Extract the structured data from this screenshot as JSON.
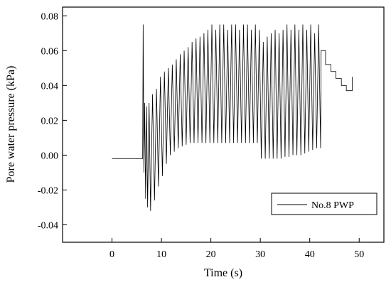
{
  "chart_data": {
    "type": "line",
    "xlabel": "Time (s)",
    "ylabel": "Pore water pressure (kPa)",
    "xlim": [
      -10,
      55
    ],
    "ylim": [
      -0.05,
      0.085
    ],
    "xticks": [
      0,
      10,
      20,
      30,
      40,
      50
    ],
    "yticks": [
      -0.04,
      -0.02,
      0.0,
      0.02,
      0.04,
      0.06,
      0.08
    ],
    "xtick_labels": [
      "0",
      "10",
      "20",
      "30",
      "40",
      "50"
    ],
    "ytick_labels": [
      "-0.04",
      "-0.02",
      "0.00",
      "0.02",
      "0.04",
      "0.06",
      "0.08"
    ],
    "grid": false,
    "legend_position": "bottom-right",
    "series": [
      {
        "name": "No.8 PWP",
        "x": [
          0,
          6.2,
          6.3,
          6.45,
          6.6,
          6.8,
          7.0,
          7.2,
          7.5,
          7.8,
          8.2,
          8.6,
          9.0,
          9.4,
          9.8,
          10.2,
          10.6,
          11.0,
          11.4,
          11.8,
          12.2,
          12.6,
          13.0,
          13.4,
          13.8,
          14.2,
          14.6,
          15.0,
          15.4,
          15.8,
          16.2,
          16.6,
          17.0,
          17.4,
          17.8,
          18.2,
          18.6,
          19.0,
          19.4,
          19.8,
          20.2,
          20.6,
          21.0,
          21.4,
          21.8,
          22.2,
          22.6,
          23.0,
          23.4,
          23.8,
          24.2,
          24.6,
          25.0,
          25.4,
          25.8,
          26.2,
          26.6,
          27.0,
          27.4,
          27.8,
          28.2,
          28.6,
          29.0,
          29.4,
          29.8,
          30.2,
          30.6,
          31.0,
          31.4,
          31.8,
          32.2,
          32.6,
          33.0,
          33.4,
          33.8,
          34.2,
          34.6,
          35.0,
          35.4,
          35.8,
          36.2,
          36.6,
          37.0,
          37.4,
          37.8,
          38.2,
          38.6,
          39.0,
          39.4,
          39.8,
          40.2,
          40.6,
          41.0,
          41.4,
          41.8,
          42.2,
          42.3,
          43.2,
          43.2,
          44.3,
          44.3,
          45.3,
          45.3,
          46.4,
          46.4,
          47.4,
          47.4,
          48.6,
          48.6
        ],
        "y": [
          -0.002,
          -0.002,
          0.075,
          -0.01,
          0.03,
          -0.025,
          0.028,
          -0.03,
          0.03,
          -0.032,
          0.035,
          -0.026,
          0.038,
          -0.018,
          0.045,
          -0.012,
          0.048,
          -0.005,
          0.05,
          0.0,
          0.052,
          0.002,
          0.055,
          0.004,
          0.058,
          0.005,
          0.06,
          0.006,
          0.062,
          0.007,
          0.065,
          0.007,
          0.067,
          0.007,
          0.068,
          0.007,
          0.07,
          0.007,
          0.072,
          0.007,
          0.075,
          0.007,
          0.072,
          0.007,
          0.075,
          0.007,
          0.075,
          0.007,
          0.072,
          0.007,
          0.075,
          0.007,
          0.075,
          0.007,
          0.072,
          0.007,
          0.075,
          0.007,
          0.075,
          0.007,
          0.072,
          0.007,
          0.075,
          0.007,
          0.072,
          -0.002,
          0.065,
          -0.002,
          0.068,
          -0.002,
          0.07,
          -0.002,
          0.072,
          -0.002,
          0.07,
          -0.002,
          0.072,
          -0.001,
          0.075,
          -0.001,
          0.072,
          0.0,
          0.075,
          0.0,
          0.072,
          0.0,
          0.075,
          0.001,
          0.072,
          0.002,
          0.075,
          0.003,
          0.07,
          0.004,
          0.075,
          0.004,
          0.06,
          0.06,
          0.052,
          0.052,
          0.048,
          0.048,
          0.044,
          0.044,
          0.04,
          0.04,
          0.037,
          0.037,
          0.045
        ]
      }
    ]
  }
}
